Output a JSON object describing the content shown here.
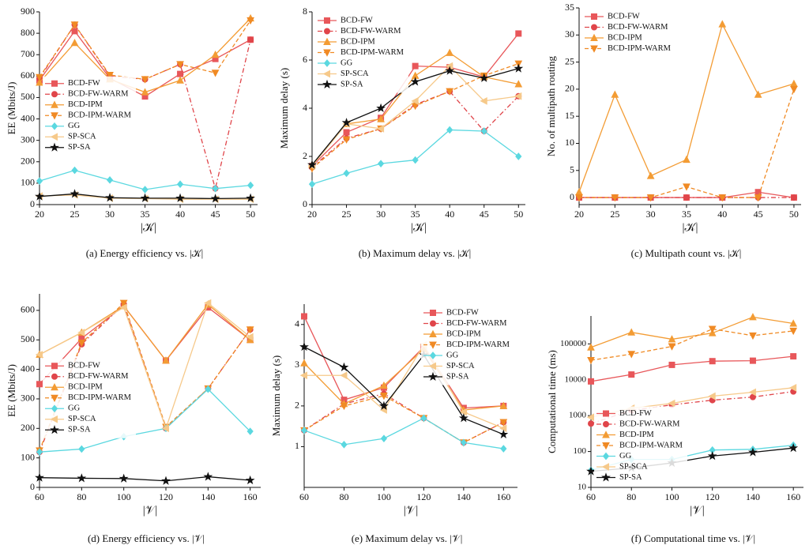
{
  "chart_data": [
    {
      "type": "line",
      "caption": "(a) Energy efficiency vs. |𝒦|",
      "xlabel": "|𝒦|",
      "ylabel": "EE (Mbits/J)",
      "x": [
        20,
        25,
        30,
        35,
        40,
        45,
        50
      ],
      "xlim": [
        20,
        51
      ],
      "xticks": [
        20,
        25,
        30,
        35,
        40,
        45,
        50
      ],
      "ylim": [
        0,
        900
      ],
      "yticks": [
        0,
        100,
        200,
        300,
        400,
        500,
        600,
        700,
        800,
        900
      ],
      "log": false,
      "legend": "center left",
      "series": [
        {
          "name": "BCD-FW",
          "color": "#e8575a",
          "marker": "square",
          "dash": "solid",
          "values": [
            580,
            810,
            590,
            505,
            610,
            680,
            770
          ]
        },
        {
          "name": "BCD-FW-WARM",
          "color": "#e0454a",
          "marker": "circle",
          "dash": "dashdot",
          "values": [
            590,
            840,
            600,
            585,
            655,
            75,
            770
          ]
        },
        {
          "name": "BCD-IPM",
          "color": "#f39c34",
          "marker": "triangle-up",
          "dash": "solid",
          "values": [
            570,
            755,
            585,
            525,
            580,
            700,
            870
          ]
        },
        {
          "name": "BCD-IPM-WARM",
          "color": "#f08a24",
          "marker": "triangle-down",
          "dash": "dashed",
          "values": [
            595,
            840,
            605,
            585,
            655,
            615,
            860
          ]
        },
        {
          "name": "GG",
          "color": "#5bd8e0",
          "marker": "diamond",
          "dash": "solid",
          "values": [
            110,
            160,
            115,
            70,
            95,
            75,
            90
          ]
        },
        {
          "name": "SP-SCA",
          "color": "#f6c98a",
          "marker": "triangle-left",
          "dash": "solid",
          "values": [
            40,
            45,
            30,
            28,
            25,
            25,
            25
          ]
        },
        {
          "name": "SP-SA",
          "color": "#111111",
          "marker": "star",
          "dash": "solid",
          "values": [
            38,
            50,
            32,
            30,
            30,
            28,
            30
          ]
        }
      ]
    },
    {
      "type": "line",
      "caption": "(b) Maximum delay vs. |𝒦|",
      "xlabel": "|𝒦|",
      "ylabel": "Maximum delay (s)",
      "x": [
        20,
        25,
        30,
        35,
        40,
        45,
        50
      ],
      "xlim": [
        20,
        51
      ],
      "xticks": [
        20,
        25,
        30,
        35,
        40,
        45,
        50
      ],
      "ylim": [
        0,
        8
      ],
      "yticks": [
        0,
        2,
        4,
        6,
        8
      ],
      "log": false,
      "legend": "upper left",
      "series": [
        {
          "name": "BCD-FW",
          "color": "#e8575a",
          "marker": "square",
          "dash": "solid",
          "values": [
            1.6,
            3.0,
            3.6,
            5.75,
            5.7,
            5.3,
            7.1
          ]
        },
        {
          "name": "BCD-FW-WARM",
          "color": "#e0454a",
          "marker": "circle",
          "dash": "dashdot",
          "values": [
            1.55,
            2.75,
            3.15,
            4.15,
            4.7,
            3.05,
            4.5
          ]
        },
        {
          "name": "BCD-IPM",
          "color": "#f39c34",
          "marker": "triangle-up",
          "dash": "solid",
          "values": [
            1.65,
            3.35,
            3.55,
            5.35,
            6.3,
            5.3,
            5.0
          ]
        },
        {
          "name": "BCD-IPM-WARM",
          "color": "#f08a24",
          "marker": "triangle-down",
          "dash": "dashed",
          "values": [
            1.5,
            2.7,
            3.15,
            4.1,
            4.7,
            5.35,
            5.85
          ]
        },
        {
          "name": "GG",
          "color": "#5bd8e0",
          "marker": "diamond",
          "dash": "solid",
          "values": [
            0.85,
            1.3,
            1.7,
            1.85,
            3.1,
            3.05,
            2.0
          ]
        },
        {
          "name": "SP-SCA",
          "color": "#f6c98a",
          "marker": "triangle-left",
          "dash": "solid",
          "values": [
            1.6,
            3.35,
            3.15,
            4.3,
            5.75,
            4.3,
            4.5
          ]
        },
        {
          "name": "SP-SA",
          "color": "#111111",
          "marker": "star",
          "dash": "solid",
          "values": [
            1.65,
            3.4,
            4.0,
            5.1,
            5.55,
            5.25,
            5.65
          ]
        }
      ]
    },
    {
      "type": "line",
      "caption": "(c) Multipath count vs. |𝒦|",
      "xlabel": "|𝒦|",
      "ylabel": "No. of multipath routing",
      "x": [
        20,
        25,
        30,
        35,
        40,
        45,
        50
      ],
      "xlim": [
        20,
        51
      ],
      "xticks": [
        20,
        25,
        30,
        35,
        40,
        45,
        50
      ],
      "ylim": [
        -1.3,
        35
      ],
      "yticks": [
        0,
        5,
        10,
        15,
        20,
        25,
        30,
        35
      ],
      "log": false,
      "legend": "upper left",
      "series": [
        {
          "name": "BCD-FW",
          "color": "#e8575a",
          "marker": "square",
          "dash": "solid",
          "values": [
            0,
            0,
            0,
            0,
            0,
            1,
            0
          ]
        },
        {
          "name": "BCD-FW-WARM",
          "color": "#e0454a",
          "marker": "circle",
          "dash": "dashdot",
          "values": [
            0,
            0,
            0,
            0,
            0,
            0,
            0
          ]
        },
        {
          "name": "BCD-IPM",
          "color": "#f39c34",
          "marker": "triangle-up",
          "dash": "solid",
          "values": [
            1,
            19,
            4,
            7,
            32,
            19,
            21
          ]
        },
        {
          "name": "BCD-IPM-WARM",
          "color": "#f08a24",
          "marker": "triangle-down",
          "dash": "dashed",
          "values": [
            0,
            0,
            0,
            2,
            0,
            0,
            20
          ]
        }
      ]
    },
    {
      "type": "line",
      "caption": "(d) Energy efficiency vs. |𝒱|",
      "xlabel": "|𝒱|",
      "ylabel": "EE (Mbits/J)",
      "x": [
        60,
        80,
        100,
        120,
        140,
        160
      ],
      "xlim": [
        60,
        165
      ],
      "xticks": [
        60,
        80,
        100,
        120,
        140,
        160
      ],
      "ylim": [
        0,
        656
      ],
      "yticks": [
        0,
        100,
        200,
        300,
        400,
        500,
        600
      ],
      "log": false,
      "legend": "center left",
      "series": [
        {
          "name": "BCD-FW",
          "color": "#e8575a",
          "marker": "square",
          "dash": "solid",
          "values": [
            350,
            505,
            615,
            430,
            610,
            500
          ]
        },
        {
          "name": "BCD-FW-WARM",
          "color": "#e0454a",
          "marker": "circle",
          "dash": "dashdot",
          "values": [
            120,
            485,
            620,
            200,
            335,
            535
          ]
        },
        {
          "name": "BCD-IPM",
          "color": "#f39c34",
          "marker": "triangle-up",
          "dash": "solid",
          "values": [
            450,
            525,
            615,
            430,
            620,
            500
          ]
        },
        {
          "name": "BCD-IPM-WARM",
          "color": "#f08a24",
          "marker": "triangle-down",
          "dash": "dashed",
          "values": [
            125,
            490,
            625,
            205,
            335,
            535
          ]
        },
        {
          "name": "GG",
          "color": "#5bd8e0",
          "marker": "diamond",
          "dash": "solid",
          "values": [
            120,
            130,
            172,
            200,
            333,
            190
          ]
        },
        {
          "name": "SP-SCA",
          "color": "#f6c98a",
          "marker": "triangle-left",
          "dash": "solid",
          "values": [
            450,
            525,
            610,
            200,
            625,
            510
          ]
        },
        {
          "name": "SP-SA",
          "color": "#111111",
          "marker": "star",
          "dash": "solid",
          "values": [
            33,
            31,
            30,
            22,
            36,
            24
          ]
        }
      ]
    },
    {
      "type": "line",
      "caption": "(e) Maximum delay vs. |𝒱|",
      "xlabel": "|𝒱|",
      "ylabel": "Maximum delay (s)",
      "x": [
        60,
        80,
        100,
        120,
        140,
        160
      ],
      "xlim": [
        60,
        167
      ],
      "xticks": [
        60,
        80,
        100,
        120,
        140,
        160
      ],
      "ylim": [
        0,
        4.5
      ],
      "yticks": [
        1,
        2,
        3,
        4
      ],
      "log": false,
      "legend": "upper right",
      "series": [
        {
          "name": "BCD-FW",
          "color": "#e8575a",
          "marker": "square",
          "dash": "solid",
          "values": [
            4.2,
            2.15,
            2.45,
            3.45,
            1.95,
            2.0
          ]
        },
        {
          "name": "BCD-FW-WARM",
          "color": "#e0454a",
          "marker": "circle",
          "dash": "dashdot",
          "values": [
            1.4,
            2.05,
            2.3,
            1.7,
            1.1,
            1.6
          ]
        },
        {
          "name": "BCD-IPM",
          "color": "#f39c34",
          "marker": "triangle-up",
          "dash": "solid",
          "values": [
            3.05,
            2.05,
            2.5,
            3.4,
            1.9,
            2.0
          ]
        },
        {
          "name": "BCD-IPM-WARM",
          "color": "#f08a24",
          "marker": "triangle-down",
          "dash": "dashed",
          "values": [
            1.4,
            2.0,
            2.25,
            1.7,
            1.1,
            1.6
          ]
        },
        {
          "name": "GG",
          "color": "#5bd8e0",
          "marker": "diamond",
          "dash": "solid",
          "values": [
            1.4,
            1.05,
            1.2,
            1.7,
            1.1,
            0.95
          ]
        },
        {
          "name": "SP-SCA",
          "color": "#f6c98a",
          "marker": "triangle-left",
          "dash": "solid",
          "values": [
            2.75,
            2.75,
            1.9,
            3.5,
            1.85,
            1.45
          ]
        },
        {
          "name": "SP-SA",
          "color": "#111111",
          "marker": "star",
          "dash": "solid",
          "values": [
            3.45,
            2.95,
            2.0,
            3.25,
            1.7,
            1.3
          ]
        }
      ]
    },
    {
      "type": "line",
      "caption": "(f) Computational time vs. |𝒱|",
      "xlabel": "|𝒱|",
      "ylabel": "Computational time (ms)",
      "x": [
        60,
        80,
        100,
        120,
        140,
        160
      ],
      "xlim": [
        60,
        165
      ],
      "xticks": [
        60,
        80,
        100,
        120,
        140,
        160
      ],
      "ylim": [
        10,
        600000
      ],
      "yticks": [
        10,
        100,
        1000,
        10000,
        100000
      ],
      "log": true,
      "legend": "lower left",
      "series": [
        {
          "name": "BCD-FW",
          "color": "#e8575a",
          "marker": "square",
          "dash": "solid",
          "values": [
            9000,
            14000,
            26000,
            33000,
            34000,
            45000
          ]
        },
        {
          "name": "BCD-FW-WARM",
          "color": "#e0454a",
          "marker": "circle",
          "dash": "dashdot",
          "values": [
            600,
            1400,
            2000,
            2700,
            3300,
            4700
          ]
        },
        {
          "name": "BCD-IPM",
          "color": "#f39c34",
          "marker": "triangle-up",
          "dash": "solid",
          "values": [
            80000,
            210000,
            135000,
            200000,
            560000,
            370000
          ]
        },
        {
          "name": "BCD-IPM-WARM",
          "color": "#f08a24",
          "marker": "triangle-down",
          "dash": "dashed",
          "values": [
            35000,
            52000,
            85000,
            260000,
            170000,
            230000
          ]
        },
        {
          "name": "GG",
          "color": "#5bd8e0",
          "marker": "diamond",
          "dash": "solid",
          "values": [
            30,
            60,
            60,
            110,
            115,
            150
          ]
        },
        {
          "name": "SP-SCA",
          "color": "#f6c98a",
          "marker": "triangle-left",
          "dash": "solid",
          "values": [
            900,
            1600,
            2200,
            3500,
            4500,
            6000
          ]
        },
        {
          "name": "SP-SA",
          "color": "#111111",
          "marker": "star",
          "dash": "solid",
          "values": [
            28,
            35,
            48,
            75,
            95,
            125
          ]
        }
      ]
    }
  ]
}
